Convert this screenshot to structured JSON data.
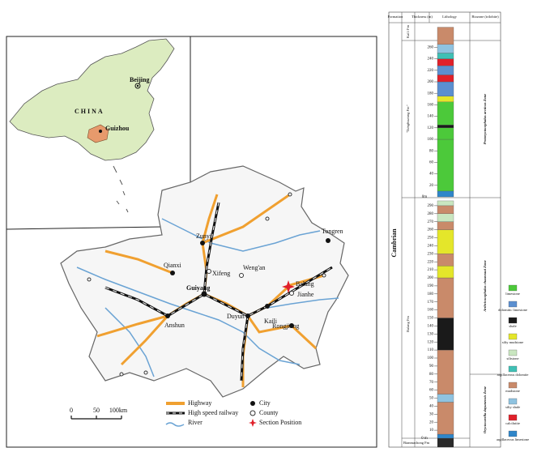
{
  "map": {
    "inset": {
      "country": "CHINA",
      "capital": "Beijing",
      "province": "Guizhou"
    },
    "places": [
      "Zunyi",
      "Tongren",
      "Qianxi",
      "Xifeng",
      "Weng'an",
      "Guiyang",
      "Balang",
      "Jianhe",
      "Anshun",
      "Duyun",
      "Kaili",
      "Rongjiang"
    ],
    "legend": [
      "Highway",
      "High speed railway",
      "River",
      "City",
      "County",
      "Section Position"
    ],
    "scale": [
      "0",
      "50",
      "100km"
    ]
  },
  "column": {
    "headers": [
      "Formation",
      "Thickness (m)",
      "Lithology",
      "Biozone (trilobite)"
    ],
    "system": "Cambrian",
    "formations": [
      "Kaili Fm",
      "\"Tsinghsutung Fm\"",
      "Balang Fm",
      "Bianmachong Fm"
    ],
    "zones": [
      "Protoryctocephalus arcticus Zone",
      "Arthricocephalus chauveaui Zone",
      "Oryctocarella duyunensis Zone"
    ],
    "upper_zero": "0m",
    "lower_zero": "0 m",
    "upper_ticks": [
      20,
      40,
      60,
      80,
      100,
      120,
      140,
      160,
      180,
      200,
      220,
      240,
      260
    ],
    "lower_ticks": [
      10,
      20,
      30,
      40,
      50,
      60,
      70,
      80,
      90,
      100,
      110,
      120,
      130,
      140,
      150,
      160,
      170,
      180,
      190,
      200,
      210,
      220,
      230,
      240,
      250,
      260,
      270,
      280,
      290
    ],
    "lithologies": [
      {
        "name": "limestone",
        "color": "#4cc93a"
      },
      {
        "name": "dolomitic limestone",
        "color": "#5b8fd0"
      },
      {
        "name": "shale",
        "color": "#1a1a1a"
      },
      {
        "name": "silty mudstone",
        "color": "#e4e62a"
      },
      {
        "name": "siltstone",
        "color": "#c9e6c0"
      },
      {
        "name": "argillaceous dolomite",
        "color": "#3fc0b5"
      },
      {
        "name": "mudstone",
        "color": "#c98a6a"
      },
      {
        "name": "silty shale",
        "color": "#8fc3e0"
      },
      {
        "name": "calcilutite",
        "color": "#e0202a"
      },
      {
        "name": "argillaceous limestone",
        "color": "#2f86c9"
      }
    ],
    "upper_layers": [
      [
        0,
        10,
        9
      ],
      [
        10,
        100,
        0
      ],
      [
        100,
        120,
        0
      ],
      [
        120,
        125,
        2
      ],
      [
        125,
        165,
        0
      ],
      [
        165,
        175,
        3
      ],
      [
        175,
        200,
        1
      ],
      [
        200,
        212,
        8
      ],
      [
        212,
        228,
        1
      ],
      [
        228,
        240,
        8
      ],
      [
        240,
        250,
        5
      ],
      [
        250,
        265,
        7
      ],
      [
        265,
        295,
        6
      ]
    ],
    "lower_layers": [
      [
        0,
        5,
        9
      ],
      [
        5,
        45,
        6
      ],
      [
        45,
        55,
        7
      ],
      [
        55,
        110,
        6
      ],
      [
        110,
        150,
        2
      ],
      [
        150,
        200,
        6
      ],
      [
        200,
        215,
        3
      ],
      [
        215,
        230,
        6
      ],
      [
        230,
        260,
        3
      ],
      [
        260,
        270,
        6
      ],
      [
        270,
        280,
        4
      ],
      [
        280,
        290,
        6
      ],
      [
        290,
        296,
        4
      ]
    ]
  }
}
